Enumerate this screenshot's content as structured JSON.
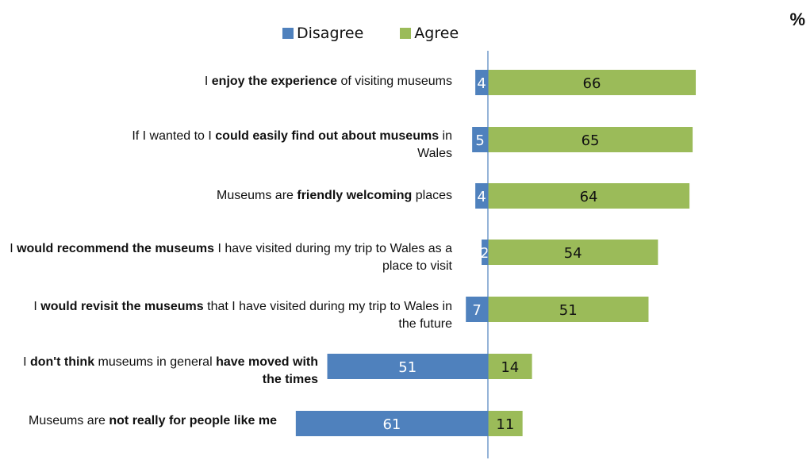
{
  "unit_label": "%",
  "colors": {
    "disagree": "#4f81bd",
    "agree": "#9bbb59",
    "axis": "#4f81bd"
  },
  "chart_data": {
    "type": "bar",
    "orientation": "horizontal-diverging",
    "legend": [
      "Disagree",
      "Agree"
    ],
    "legend_position": "top",
    "categories": [
      [
        [
          "I ",
          false
        ],
        [
          "enjoy the experience",
          true
        ],
        [
          " of visiting  museums",
          false
        ]
      ],
      [
        [
          "If I wanted to I ",
          false
        ],
        [
          "could easily find out about museums",
          true
        ],
        [
          " in Wales",
          false
        ]
      ],
      [
        [
          "Museums are ",
          false
        ],
        [
          "friendly welcoming",
          true
        ],
        [
          " places",
          false
        ]
      ],
      [
        [
          "I ",
          false
        ],
        [
          "would recommend the museums",
          true
        ],
        [
          " I have visited during my trip to Wales as a place to visit",
          false
        ]
      ],
      [
        [
          "I ",
          false
        ],
        [
          "would revisit the museums",
          true
        ],
        [
          " that I have visited during my trip to Wales in the future",
          false
        ]
      ],
      [
        [
          "I ",
          false
        ],
        [
          "don't think",
          true
        ],
        [
          " museums in general ",
          false
        ],
        [
          "have moved with the times",
          true
        ]
      ],
      [
        [
          "Museums are ",
          false
        ],
        [
          "not really for people like me",
          true
        ]
      ]
    ],
    "series": [
      {
        "name": "Disagree",
        "values": [
          4,
          5,
          4,
          2,
          7,
          51,
          61
        ]
      },
      {
        "name": "Agree",
        "values": [
          66,
          65,
          64,
          54,
          51,
          14,
          11
        ]
      }
    ]
  }
}
